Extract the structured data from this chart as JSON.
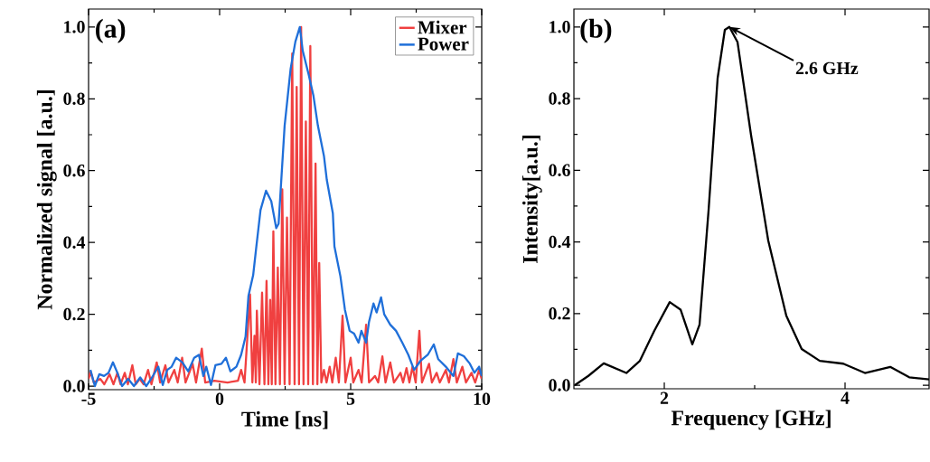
{
  "chart_data": [
    {
      "type": "line",
      "xlabel": "Time [ns]",
      "ylabel": "Normalized signal [a.u.]",
      "xlim": [
        -5,
        10
      ],
      "ylim": [
        -0.01,
        1.05
      ],
      "xticks": [
        -5,
        0,
        5,
        10
      ],
      "yticks": [
        {
          "value": 0,
          "label": "0.0"
        },
        {
          "value": 0.2,
          "label": "0.2"
        },
        {
          "value": 0.4,
          "label": "0.4"
        },
        {
          "value": 0.6,
          "label": "0.6"
        },
        {
          "value": 0.8,
          "label": "0.8"
        },
        {
          "value": 1,
          "label": "1.0"
        }
      ],
      "legend": "top right",
      "marker": "none",
      "annotations": [
        "(a)"
      ],
      "series": [
        {
          "name": "Mixer",
          "color": "#f04040",
          "x": [
            -5,
            -4.92,
            -4.8,
            -4.55,
            -4.4,
            -4.2,
            -4.05,
            -3.9,
            -3.78,
            -3.62,
            -3.5,
            -3.33,
            -3.2,
            -3.05,
            -2.9,
            -2.73,
            -2.6,
            -2.4,
            -2.27,
            -2.07,
            -1.95,
            -1.73,
            -1.6,
            -1.43,
            -1.3,
            -1.03,
            -0.9,
            -0.68,
            -0.55,
            -0.2,
            0.3,
            0.7,
            0.82,
            0.95,
            1.16,
            1.25,
            1.33,
            1.38,
            1.42,
            1.52,
            1.62,
            1.71,
            1.79,
            1.86,
            1.93,
            1.99,
            2.05,
            2.13,
            2.22,
            2.3,
            2.39,
            2.48,
            2.57,
            2.67,
            2.77,
            2.86,
            2.94,
            3.03,
            3.11,
            3.2,
            3.29,
            3.38,
            3.46,
            3.56,
            3.66,
            3.73,
            3.8,
            3.88,
            3.98,
            4.08,
            4.2,
            4.3,
            4.43,
            4.55,
            4.69,
            4.8,
            5.0,
            5.1,
            5.3,
            5.42,
            5.59,
            5.7,
            5.93,
            6.05,
            6.21,
            6.33,
            6.51,
            6.65,
            6.9,
            7.0,
            7.13,
            7.24,
            7.36,
            7.48,
            7.62,
            7.72,
            7.99,
            8.1,
            8.28,
            8.4,
            8.63,
            8.75,
            8.92,
            9.05,
            9.26,
            9.4,
            9.61,
            9.75,
            9.9,
            10
          ],
          "values": [
            0.02,
            0.04,
            0.01,
            0.02,
            0.005,
            0.033,
            0.005,
            0.037,
            0.005,
            0.037,
            0.005,
            0.058,
            0.005,
            0.02,
            0.005,
            0.045,
            0.005,
            0.066,
            0.01,
            0.058,
            0.01,
            0.045,
            0.01,
            0.079,
            0.01,
            0.062,
            0.01,
            0.104,
            0.01,
            0.015,
            0.01,
            0.015,
            0.045,
            0.01,
            0.255,
            0.01,
            0.14,
            0.01,
            0.21,
            0.005,
            0.26,
            0.005,
            0.293,
            0.005,
            0.24,
            0.005,
            0.431,
            0.005,
            0.33,
            0.005,
            0.548,
            0.005,
            0.469,
            0.005,
            0.926,
            0.005,
            0.833,
            0.005,
            1.0,
            0.005,
            0.737,
            0.005,
            0.947,
            0.005,
            0.62,
            0.005,
            0.343,
            0.01,
            0.045,
            0.01,
            0.054,
            0.01,
            0.079,
            0.01,
            0.196,
            0.01,
            0.079,
            0.01,
            0.045,
            0.01,
            0.171,
            0.01,
            0.028,
            0.01,
            0.083,
            0.01,
            0.066,
            0.01,
            0.037,
            0.01,
            0.05,
            0.01,
            0.054,
            0.01,
            0.154,
            0.01,
            0.062,
            0.01,
            0.037,
            0.01,
            0.045,
            0.01,
            0.075,
            0.01,
            0.054,
            0.01,
            0.037,
            0.01,
            0.045,
            0.02
          ]
        },
        {
          "name": "Power",
          "color": "#1f6fd9",
          "x": [
            -4.93,
            -4.76,
            -4.59,
            -4.41,
            -4.24,
            -4.07,
            -3.9,
            -3.72,
            -3.49,
            -3.27,
            -3.03,
            -2.8,
            -2.58,
            -2.34,
            -2.17,
            -2.0,
            -1.83,
            -1.66,
            -1.42,
            -1.2,
            -0.97,
            -0.79,
            -0.62,
            -0.51,
            -0.33,
            -0.16,
            0.07,
            0.24,
            0.41,
            0.64,
            0.82,
            0.99,
            1.1,
            1.28,
            1.39,
            1.56,
            1.77,
            1.97,
            2.16,
            2.25,
            2.48,
            2.71,
            2.89,
            3.06,
            3.17,
            3.4,
            3.58,
            3.75,
            3.98,
            4.09,
            4.32,
            4.38,
            4.61,
            4.78,
            4.96,
            5.13,
            5.3,
            5.41,
            5.59,
            5.7,
            5.87,
            5.99,
            6.16,
            6.28,
            6.51,
            6.73,
            6.97,
            7.2,
            7.42,
            7.66,
            7.94,
            8.17,
            8.34,
            8.63,
            8.92,
            9.09,
            9.32,
            9.55,
            9.72,
            9.9,
            10
          ],
          "values": [
            0.045,
            0.0,
            0.033,
            0.028,
            0.037,
            0.066,
            0.037,
            0.0,
            0.02,
            0.0,
            0.024,
            0.0,
            0.024,
            0.054,
            0.003,
            0.045,
            0.054,
            0.079,
            0.066,
            0.041,
            0.079,
            0.087,
            0.028,
            0.054,
            0.003,
            0.058,
            0.062,
            0.079,
            0.041,
            0.054,
            0.087,
            0.138,
            0.251,
            0.309,
            0.381,
            0.49,
            0.544,
            0.515,
            0.44,
            0.452,
            0.725,
            0.884,
            0.959,
            1.0,
            0.934,
            0.867,
            0.808,
            0.725,
            0.641,
            0.574,
            0.481,
            0.389,
            0.305,
            0.213,
            0.154,
            0.146,
            0.121,
            0.154,
            0.121,
            0.179,
            0.23,
            0.205,
            0.247,
            0.2,
            0.171,
            0.154,
            0.121,
            0.087,
            0.045,
            0.07,
            0.087,
            0.116,
            0.075,
            0.054,
            0.028,
            0.091,
            0.083,
            0.062,
            0.037,
            0.054,
            0.028
          ]
        }
      ]
    },
    {
      "type": "line",
      "xlabel": "Frequency [GHz]",
      "ylabel": "Intensity[a.u.]",
      "xlim": [
        1,
        4.93
      ],
      "ylim": [
        -0.01,
        1.05
      ],
      "xticks": [
        2,
        4
      ],
      "yticks": [
        {
          "value": 0,
          "label": "0.0"
        },
        {
          "value": 0.2,
          "label": "0.2"
        },
        {
          "value": 0.4,
          "label": "0.4"
        },
        {
          "value": 0.6,
          "label": "0.6"
        },
        {
          "value": 0.8,
          "label": "0.8"
        },
        {
          "value": 1,
          "label": "1.0"
        }
      ],
      "marker": "none",
      "annotations": [
        "(b)",
        {
          "text": "2.6 GHz",
          "x": 2.72,
          "y": 1.0
        }
      ],
      "series": [
        {
          "color": "#000000",
          "x": [
            1.01,
            1.16,
            1.33,
            1.58,
            1.73,
            1.89,
            2.06,
            2.18,
            2.31,
            2.39,
            2.49,
            2.59,
            2.67,
            2.72,
            2.81,
            2.96,
            3.15,
            3.35,
            3.52,
            3.72,
            3.98,
            4.22,
            4.5,
            4.71,
            4.93
          ],
          "values": [
            0.0,
            0.026,
            0.061,
            0.034,
            0.068,
            0.152,
            0.232,
            0.211,
            0.114,
            0.169,
            0.488,
            0.857,
            0.992,
            1.0,
            0.958,
            0.698,
            0.404,
            0.194,
            0.101,
            0.068,
            0.06,
            0.034,
            0.051,
            0.022,
            0.016
          ]
        }
      ]
    }
  ]
}
